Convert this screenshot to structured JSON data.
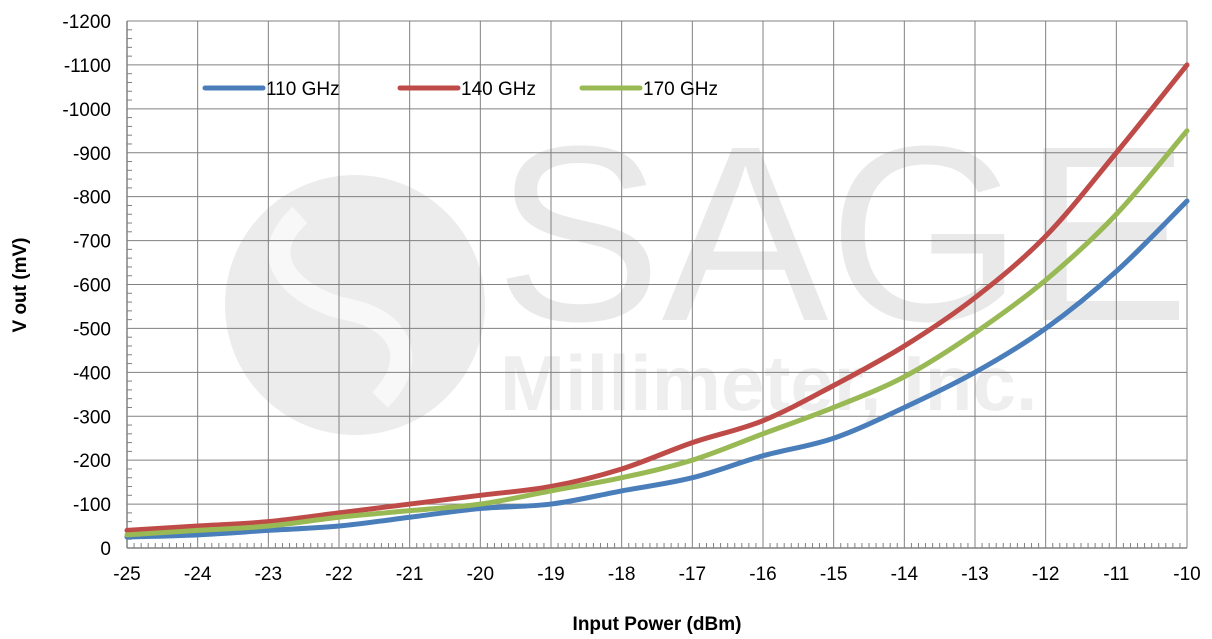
{
  "watermark": {
    "brand": "SAGE",
    "sub": "Millimeter, Inc."
  },
  "chart_data": {
    "type": "line",
    "xlabel": "Input Power (dBm)",
    "ylabel": "V out (mV)",
    "xlim": [
      -25,
      -10
    ],
    "ylim": [
      0,
      -1200
    ],
    "x_ticks": [
      -25,
      -24,
      -23,
      -22,
      -21,
      -20,
      -19,
      -18,
      -17,
      -16,
      -15,
      -14,
      -13,
      -12,
      -11,
      -10
    ],
    "y_ticks": [
      0,
      -100,
      -200,
      -300,
      -400,
      -500,
      -600,
      -700,
      -800,
      -900,
      -1000,
      -1100,
      -1200
    ],
    "grid": true,
    "legend_position": "top-left",
    "x": [
      -25,
      -24,
      -23,
      -22,
      -21,
      -20,
      -19,
      -18,
      -17,
      -16,
      -15,
      -14,
      -13,
      -12,
      -11,
      -10
    ],
    "series": [
      {
        "name": "110 GHz",
        "color": "#4a7ebb",
        "values": [
          -25,
          -30,
          -40,
          -50,
          -70,
          -90,
          -100,
          -130,
          -160,
          -210,
          -250,
          -320,
          -400,
          -500,
          -630,
          -790
        ]
      },
      {
        "name": "140 GHz",
        "color": "#be4b48",
        "values": [
          -40,
          -50,
          -60,
          -80,
          -100,
          -120,
          -140,
          -180,
          -240,
          -290,
          -370,
          -460,
          -570,
          -710,
          -900,
          -1100
        ]
      },
      {
        "name": "170 GHz",
        "color": "#98b954",
        "values": [
          -30,
          -40,
          -50,
          -70,
          -85,
          -100,
          -130,
          -160,
          -200,
          -260,
          -320,
          -390,
          -490,
          -610,
          -760,
          -950
        ]
      }
    ]
  }
}
